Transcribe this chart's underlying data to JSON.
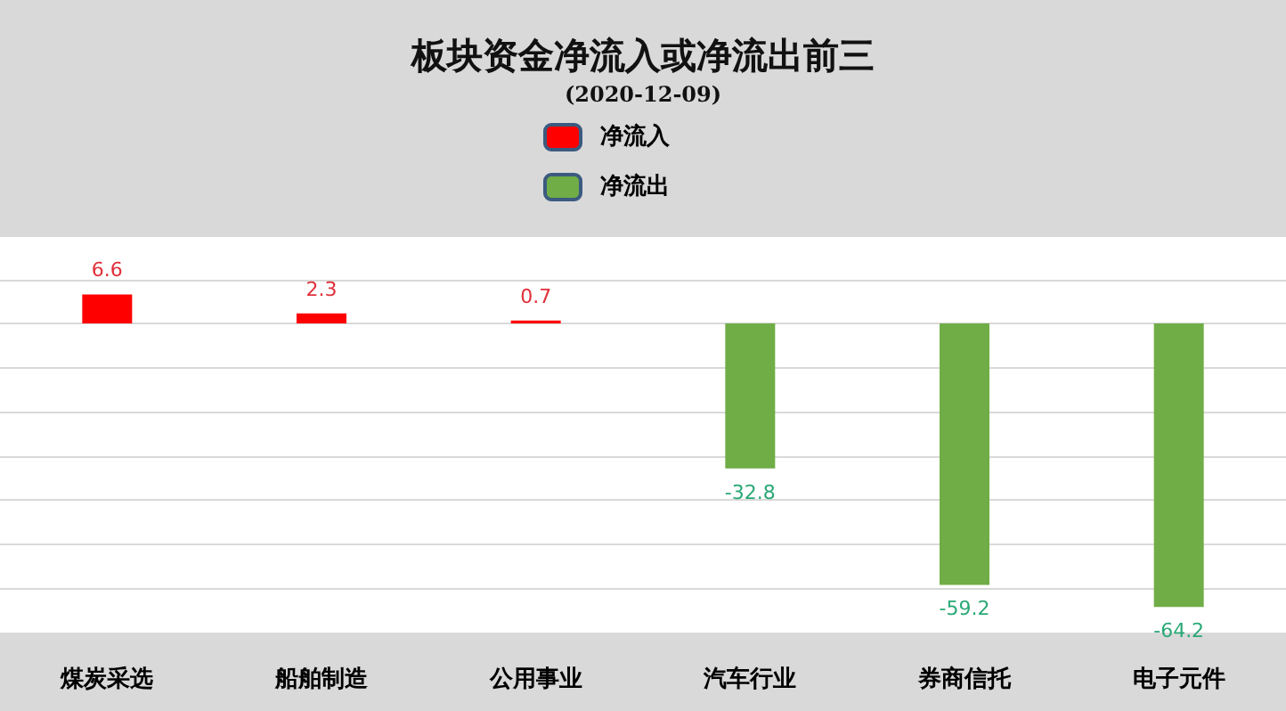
{
  "chart_data": {
    "type": "bar",
    "title": "板块资金净流入或净流出前三",
    "subtitle": "(2020-12-09)",
    "categories": [
      "煤炭采选",
      "船舶制造",
      "公用事业",
      "汽车行业",
      "券商信托",
      "电子元件"
    ],
    "series": [
      {
        "name": "净流入",
        "color": "#ff0000",
        "values": [
          6.6,
          2.3,
          0.7,
          null,
          null,
          null
        ]
      },
      {
        "name": "净流出",
        "color": "#70ad47",
        "values": [
          null,
          null,
          null,
          -32.8,
          -59.2,
          -64.2
        ]
      }
    ],
    "ylim": [
      -70,
      20
    ],
    "yticks": [
      {
        "value": -70,
        "label": null
      },
      {
        "value": -60,
        "label": null
      },
      {
        "value": -50,
        "label": null
      },
      {
        "value": -40,
        "label": null
      },
      {
        "value": -30,
        "label": null
      },
      {
        "value": -20,
        "label": null
      },
      {
        "value": -10,
        "label": null
      },
      {
        "value": 0,
        "label": null
      },
      {
        "value": 10,
        "label": null
      },
      {
        "value": 20,
        "label": null
      }
    ],
    "grid": "y",
    "tick_labels": "x",
    "data_labels": true,
    "legend": "top"
  }
}
